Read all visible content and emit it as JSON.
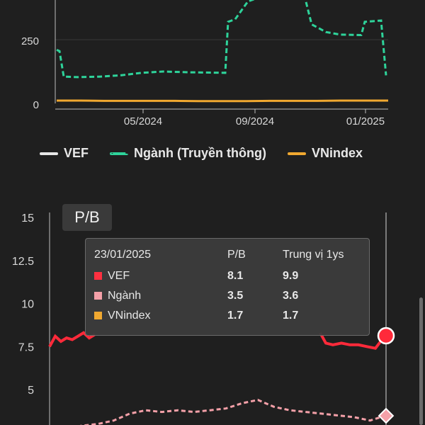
{
  "chart_data": [
    {
      "type": "line",
      "x_ticks": [
        "05/2024",
        "09/2024",
        "01/2025"
      ],
      "y_ticks": [
        "0",
        "250"
      ],
      "series": [
        {
          "name": "VEF",
          "color": "#e6e6e6",
          "style": "solid"
        },
        {
          "name": "Ngành (Truyền thông)",
          "color": "#2ed39a",
          "style": "dashed"
        },
        {
          "name": "VNindex",
          "color": "#f0a830",
          "style": "solid"
        }
      ],
      "ngành_values": [
        210,
        205,
        105,
        103,
        105,
        110,
        120,
        125,
        122,
        120,
        320,
        330,
        400,
        420,
        430,
        420,
        310,
        280,
        270,
        268,
        320,
        325,
        110
      ],
      "vnindex_values": [
        14,
        14,
        13,
        13,
        13,
        13,
        12,
        12,
        12,
        13,
        13,
        13,
        14,
        14,
        14
      ],
      "legend_position": "bottom"
    },
    {
      "type": "line",
      "title": "P/B",
      "y_ticks": [
        "15",
        "12.5",
        "10",
        "7.5",
        "5"
      ],
      "ylim": [
        2.5,
        15
      ],
      "series": [
        {
          "name": "VEF",
          "color": "#ff2a3a",
          "values_left": [
            7.5,
            8.1,
            7.8,
            8.0,
            7.9,
            8.1,
            8.3,
            8.0,
            8.2
          ],
          "values_right": [
            8.3,
            7.7,
            7.6,
            7.7,
            7.6,
            7.6,
            7.5,
            7.4,
            8.1
          ]
        },
        {
          "name": "Ngành",
          "color": "#f4a0a8",
          "values": [
            2.6,
            2.7,
            2.9,
            3.0,
            3.2,
            3.6,
            3.8,
            3.7,
            3.8,
            3.7,
            3.8,
            3.9,
            4.2,
            4.4,
            4.0,
            3.8,
            3.7,
            3.6,
            3.5,
            3.4,
            3.2,
            3.5
          ]
        },
        {
          "name": "VNindex",
          "color": "#f0a830",
          "values": [
            1.7
          ]
        }
      ],
      "tooltip": {
        "date": "23/01/2025",
        "col_pb": "P/B",
        "col_median": "Trung vị 1ys",
        "rows": [
          {
            "name": "VEF",
            "color": "#ff3040",
            "pb": "8.1",
            "median": "9.9"
          },
          {
            "name": "Ngành",
            "color": "#f4a0a8",
            "pb": "3.5",
            "median": "3.6"
          },
          {
            "name": "VNindex",
            "color": "#f0a830",
            "pb": "1.7",
            "median": "1.7"
          }
        ]
      }
    }
  ],
  "legend": [
    {
      "label": "VEF",
      "color": "#e6e6e6"
    },
    {
      "label": "Ngành (Truyền thông)",
      "color": "#2ed39a"
    },
    {
      "label": "VNindex",
      "color": "#f0a830"
    }
  ]
}
